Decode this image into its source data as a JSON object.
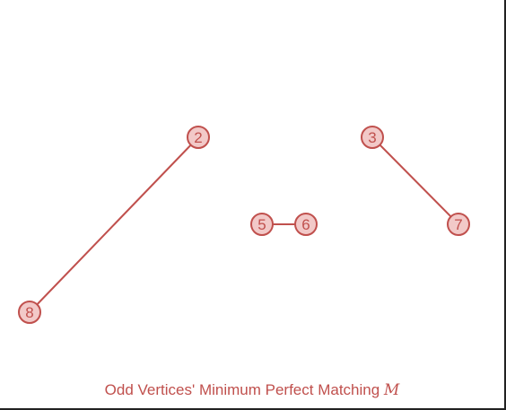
{
  "caption": {
    "text": "Odd Vertices' Minimum Perfect Matching",
    "math_symbol": "M"
  },
  "colors": {
    "accent": "#c0504d",
    "node_fill": "#f2c9c8"
  },
  "graph": {
    "nodes": [
      "2",
      "3",
      "5",
      "6",
      "7",
      "8"
    ],
    "edges": [
      [
        "2",
        "8"
      ],
      [
        "3",
        "7"
      ],
      [
        "5",
        "6"
      ]
    ]
  }
}
